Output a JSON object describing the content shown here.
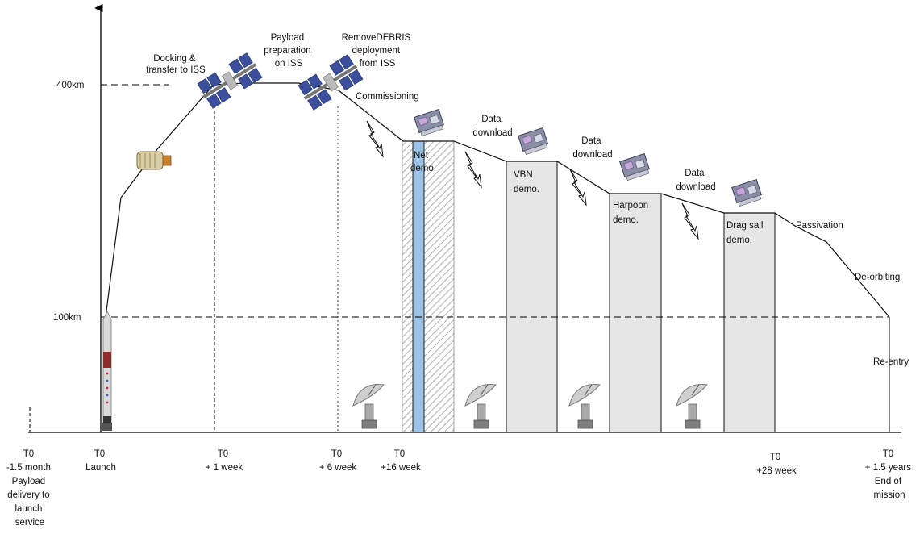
{
  "axis": {
    "y_ticks": [
      {
        "label": "400km",
        "km": 400
      },
      {
        "label": "100km",
        "km": 100
      }
    ]
  },
  "timeline": [
    {
      "key": "t_minus",
      "lines": [
        "T0",
        "-1.5 month",
        "Payload",
        "delivery to",
        "launch",
        "service"
      ]
    },
    {
      "key": "t_launch",
      "lines": [
        "T0",
        "Launch"
      ]
    },
    {
      "key": "t_1w",
      "lines": [
        "T0",
        "+ 1 week"
      ]
    },
    {
      "key": "t_6w",
      "lines": [
        "T0",
        "+ 6 week"
      ]
    },
    {
      "key": "t_16w",
      "lines": [
        "T0",
        "+16 week"
      ]
    },
    {
      "key": "t_28w",
      "lines": [
        "T0",
        "+28 week"
      ]
    },
    {
      "key": "t_end",
      "lines": [
        "T0",
        "+ 1.5 years",
        "End of",
        "mission"
      ]
    }
  ],
  "phases": {
    "docking": [
      "Docking &",
      "transfer to ISS"
    ],
    "payload_prep": [
      "Payload",
      "preparation",
      "on ISS"
    ],
    "deployment": [
      "RemoveDEBRIS",
      "deployment",
      "from ISS"
    ],
    "commissioning": [
      "Commissioning"
    ],
    "data_download_1": [
      "Data",
      "download"
    ],
    "data_download_2": [
      "Data",
      "download"
    ],
    "data_download_3": [
      "Data",
      "download"
    ],
    "passivation": [
      "Passivation"
    ],
    "deorbiting": [
      "De-orbiting"
    ],
    "reentry": [
      "Re-entry"
    ]
  },
  "demos": {
    "net": [
      "Net",
      "demo."
    ],
    "vbn": [
      "VBN",
      "demo."
    ],
    "harpoon": [
      "Harpoon",
      "demo."
    ],
    "dragsail": [
      "Drag sail",
      "demo."
    ]
  },
  "colors": {
    "demo_fill": "#e6e6e6",
    "net_band": "#9cc3e6",
    "hatch": "#9a9a9a",
    "iss_panel": "#3b4f9c",
    "sat_body": "#8a8fa8",
    "rocket": "#d9d9d9"
  },
  "icons": [
    "iss-icon",
    "cargo-vehicle-icon",
    "rocket-icon",
    "satellite-icon",
    "lightning-icon",
    "ground-antenna-icon"
  ]
}
